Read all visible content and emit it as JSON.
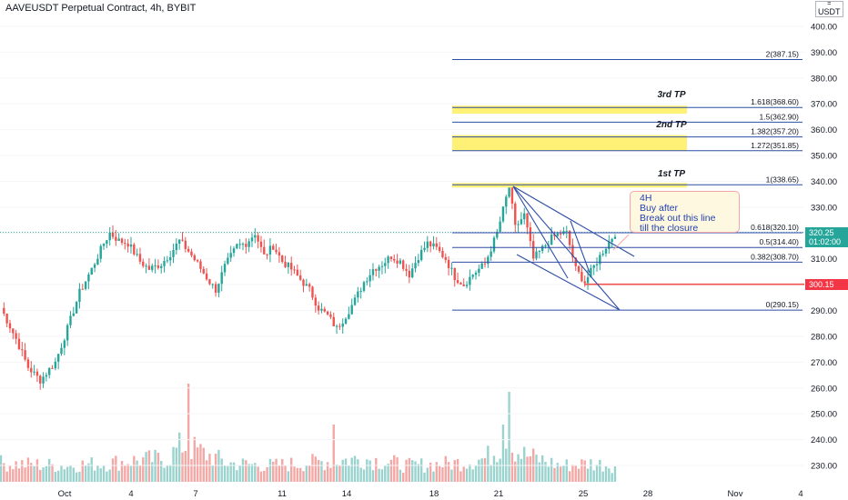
{
  "header": {
    "title": "AAVEUSDT Perpetual Contract, 4h, BYBIT"
  },
  "currency_box": {
    "line1": "USDT"
  },
  "note": {
    "lines": [
      "4H",
      "Buy after",
      "Break out this line",
      "till the closure"
    ]
  },
  "price_boxes": {
    "last": {
      "price": "320.25",
      "countdown": "01:02:00",
      "color": "#26a69a"
    },
    "red": {
      "price": "300.15",
      "color": "#f23645"
    }
  },
  "colors": {
    "up": "#26a69a",
    "down": "#ef5350",
    "fib": "#2f4ea6",
    "tp_band": "#fff176"
  },
  "chart_data": {
    "type": "candlestick",
    "title": "AAVEUSDT Perpetual Contract, 4h, BYBIT",
    "ylim": [
      222,
      410
    ],
    "yticks": [
      230,
      240,
      250,
      260,
      270,
      280,
      290,
      300,
      310,
      320,
      330,
      340,
      350,
      360,
      370,
      380,
      390,
      400
    ],
    "xticks": [
      "Oct",
      "4",
      "7",
      "11",
      "14",
      "18",
      "21",
      "25",
      "28",
      "Nov",
      "4"
    ],
    "fib_levels": [
      {
        "ratio": "2",
        "price": 387.15
      },
      {
        "ratio": "1.618",
        "price": 368.6
      },
      {
        "ratio": "1.5",
        "price": 362.9
      },
      {
        "ratio": "1.382",
        "price": 357.2
      },
      {
        "ratio": "1.272",
        "price": 351.85
      },
      {
        "ratio": "1",
        "price": 338.65
      },
      {
        "ratio": "0.618",
        "price": 320.1
      },
      {
        "ratio": "0.5",
        "price": 314.4
      },
      {
        "ratio": "0.382",
        "price": 308.7
      },
      {
        "ratio": "0",
        "price": 290.15
      }
    ],
    "tp_labels": [
      "3rd TP",
      "2nd TP",
      "1st TP"
    ],
    "horizontal_line": 300.15,
    "last_price": 320.25,
    "anchors": [
      [
        0,
        291
      ],
      [
        5,
        279
      ],
      [
        9,
        268
      ],
      [
        13,
        263
      ],
      [
        18,
        270
      ],
      [
        22,
        283
      ],
      [
        26,
        297
      ],
      [
        30,
        306
      ],
      [
        34,
        316
      ],
      [
        36,
        320
      ],
      [
        39,
        317
      ],
      [
        42,
        316
      ],
      [
        46,
        309
      ],
      [
        49,
        306
      ],
      [
        53,
        308
      ],
      [
        56,
        312
      ],
      [
        59,
        317
      ],
      [
        62,
        313
      ],
      [
        65,
        308
      ],
      [
        69,
        301
      ],
      [
        71,
        298
      ],
      [
        74,
        307
      ],
      [
        78,
        315
      ],
      [
        81,
        316
      ],
      [
        84,
        320
      ],
      [
        87,
        311
      ],
      [
        90,
        315
      ],
      [
        93,
        309
      ],
      [
        96,
        306
      ],
      [
        99,
        302
      ],
      [
        102,
        298
      ],
      [
        105,
        291
      ],
      [
        108,
        288
      ],
      [
        111,
        283
      ],
      [
        114,
        288
      ],
      [
        117,
        294
      ],
      [
        120,
        301
      ],
      [
        123,
        306
      ],
      [
        126,
        308
      ],
      [
        129,
        311
      ],
      [
        132,
        309
      ],
      [
        135,
        304
      ],
      [
        138,
        311
      ],
      [
        141,
        316
      ],
      [
        144,
        314
      ],
      [
        147,
        310
      ],
      [
        150,
        303
      ],
      [
        153,
        300
      ],
      [
        156,
        304
      ],
      [
        160,
        308
      ],
      [
        164,
        320
      ],
      [
        168,
        338
      ],
      [
        170,
        322
      ],
      [
        173,
        327
      ],
      [
        176,
        310
      ],
      [
        179,
        314
      ],
      [
        182,
        318
      ],
      [
        185,
        320
      ],
      [
        187,
        320
      ],
      [
        190,
        306
      ],
      [
        193,
        301
      ],
      [
        196,
        307
      ],
      [
        199,
        313
      ],
      [
        203,
        320
      ]
    ],
    "volume_anchors": [
      [
        0,
        0.8
      ],
      [
        20,
        0.7
      ],
      [
        35,
        0.8
      ],
      [
        42,
        0.9
      ],
      [
        55,
        1.0
      ],
      [
        60,
        1.6
      ],
      [
        75,
        0.8
      ],
      [
        90,
        0.7
      ],
      [
        110,
        0.9
      ],
      [
        120,
        1.0
      ],
      [
        135,
        0.7
      ],
      [
        150,
        0.8
      ],
      [
        160,
        1.0
      ],
      [
        167,
        1.7
      ],
      [
        172,
        1.2
      ],
      [
        185,
        0.7
      ],
      [
        195,
        0.8
      ],
      [
        203,
        0.7
      ]
    ],
    "candles_count": 204
  }
}
